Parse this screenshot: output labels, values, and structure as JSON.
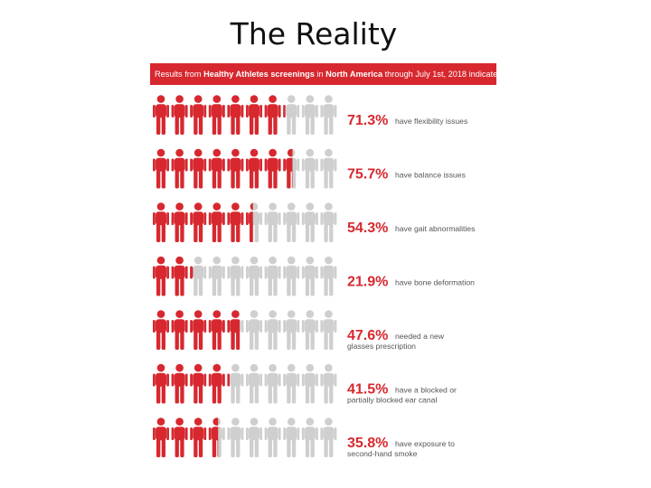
{
  "title": "The Reality",
  "banner": {
    "part1": "Results from ",
    "bold1": "Healthy Athletes screenings",
    "part2": " in ",
    "bold2": "North America",
    "part3": " through July 1st, 2018 indicate"
  },
  "colors": {
    "accent": "#d7282f",
    "figure_filled": "#d7282f",
    "figure_empty": "#cfcfcf",
    "description_text": "#555555"
  },
  "icon_name": "person-icon",
  "figures_per_row": 10,
  "chart_data": {
    "type": "pictograph",
    "unit": "%",
    "figures_represent": 100,
    "items": [
      {
        "value": 71.3,
        "label": "71.3%",
        "desc_lines": [
          "have flexibility issues"
        ]
      },
      {
        "value": 75.7,
        "label": "75.7%",
        "desc_lines": [
          "have balance issues"
        ]
      },
      {
        "value": 54.3,
        "label": "54.3%",
        "desc_lines": [
          "have gait abnormalities"
        ]
      },
      {
        "value": 21.9,
        "label": "21.9%",
        "desc_lines": [
          "have bone deformation"
        ]
      },
      {
        "value": 47.6,
        "label": "47.6%",
        "desc_lines": [
          "needed a new",
          "glasses prescription"
        ]
      },
      {
        "value": 41.5,
        "label": "41.5%",
        "desc_lines": [
          "have a blocked or",
          "partially blocked ear canal"
        ]
      },
      {
        "value": 35.8,
        "label": "35.8%",
        "desc_lines": [
          "have exposure to",
          "second-hand smoke"
        ]
      }
    ]
  }
}
